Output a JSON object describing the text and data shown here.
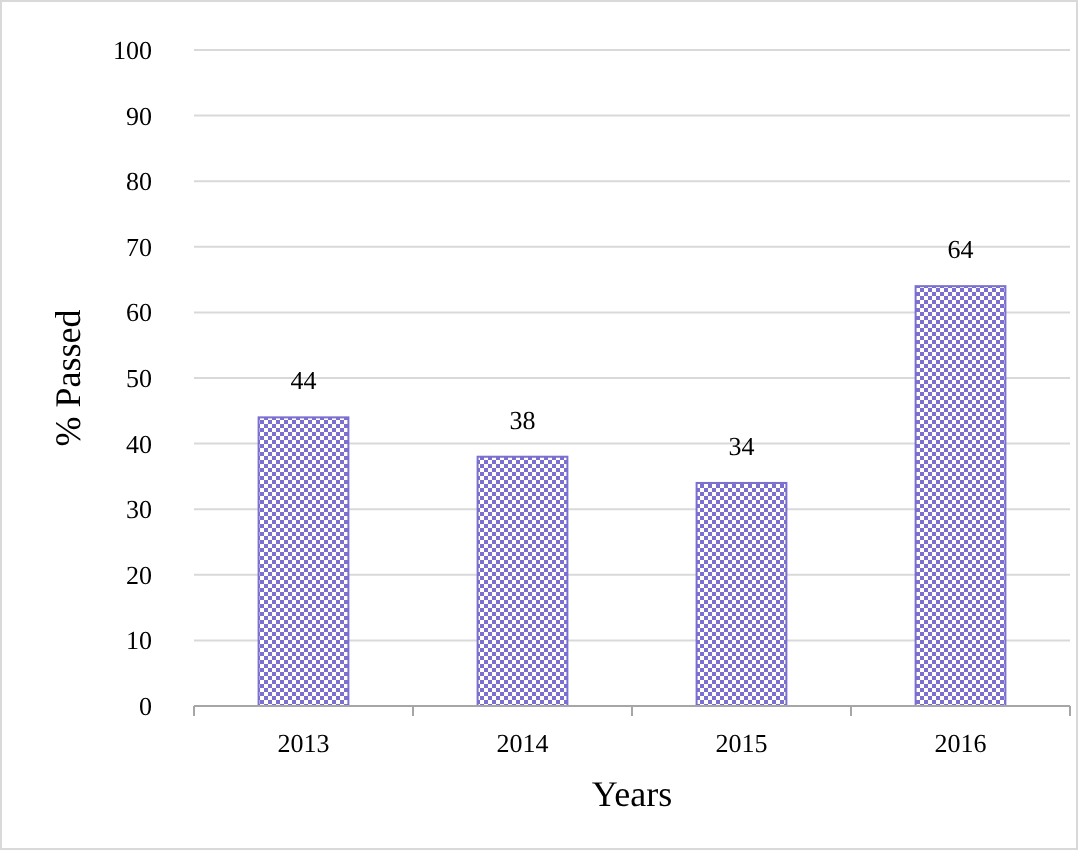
{
  "chart_data": {
    "type": "bar",
    "xlabel": "Years",
    "ylabel": "% Passed",
    "categories": [
      "2013",
      "2014",
      "2015",
      "2016"
    ],
    "values": [
      44,
      38,
      34,
      64
    ],
    "color": "#7b6fd0",
    "ylim": [
      0,
      100
    ],
    "yticks": [
      0,
      10,
      20,
      30,
      40,
      50,
      60,
      70,
      80,
      90,
      100
    ],
    "grid": "y",
    "data_labels": true
  }
}
